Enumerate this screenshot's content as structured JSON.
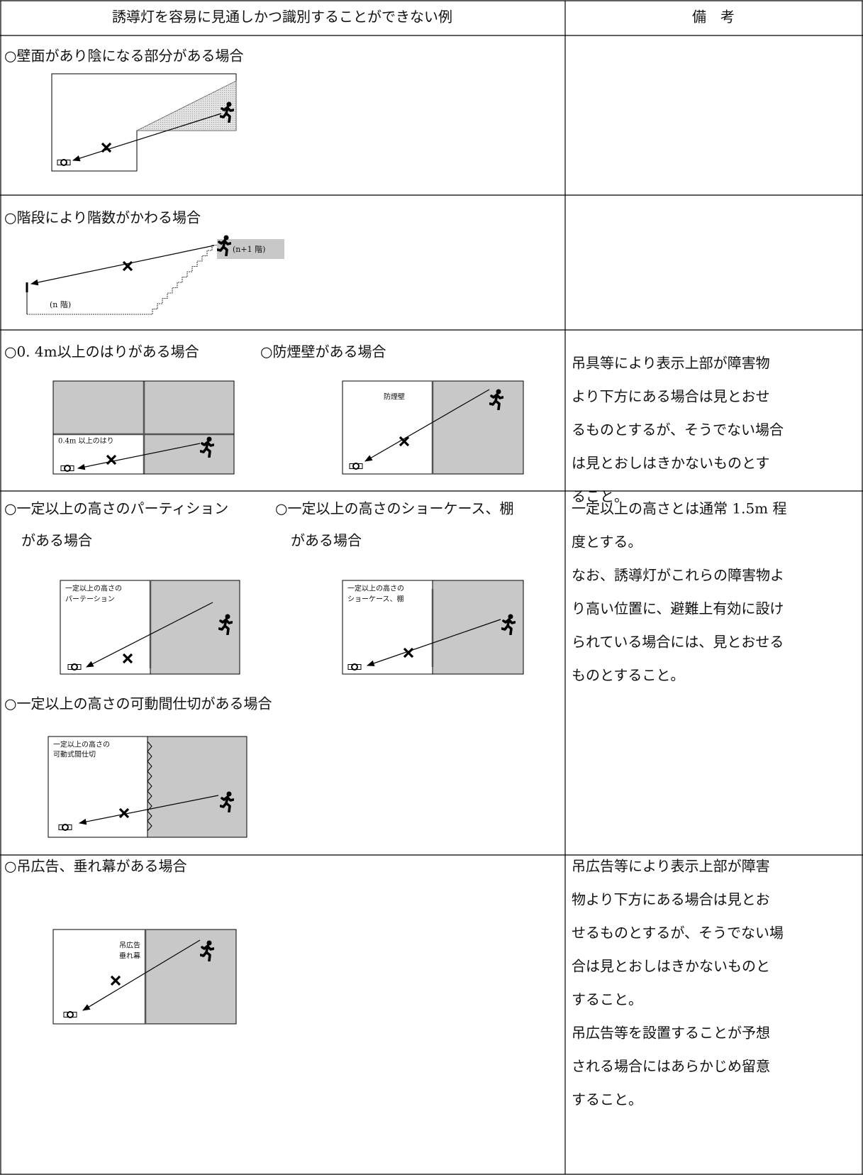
{
  "header": {
    "example": "誘導灯を容易に見通しかつ識別することができない例",
    "remarks": "備　考"
  },
  "rows": [
    {
      "headings": [
        "○壁面があり陰になる部分がある場合"
      ]
    },
    {
      "headings": [
        "○階段により階数がかわる場合"
      ],
      "diagrams": [
        {
          "labels": [
            "(n+1 階)",
            "(n 階)"
          ]
        }
      ]
    },
    {
      "headings": [
        "○0. 4m以上のはりがある場合",
        "○防煙壁がある場合"
      ],
      "diagrams": [
        {
          "labels": [
            "0.4m 以上のはり"
          ]
        },
        {
          "labels": [
            "防煙壁"
          ]
        }
      ],
      "remarks": [
        "吊具等により表示上部が障害物",
        "より下方にある場合は見とおせ",
        "るものとするが、そうでない場合",
        "は見とおしはきかないものとす",
        "ること。"
      ]
    },
    {
      "headings": [
        "○一定以上の高さのパーティション",
        "がある場合",
        "○一定以上の高さのショーケース、棚",
        "がある場合",
        "○一定以上の高さの可動間仕切がある場合"
      ],
      "diagrams": [
        {
          "labels": [
            "一定以上の高さの",
            "パーテーション"
          ]
        },
        {
          "labels": [
            "一定以上の高さの",
            "ショーケース、棚"
          ]
        },
        {
          "labels": [
            "一定以上の高さの",
            "可動式間仕切"
          ]
        }
      ],
      "remarks": [
        "一定以上の高さとは通常 1.5m 程",
        "度とする。",
        "なお、誘導灯がこれらの障害物よ",
        "り高い位置に、避難上有効に設け",
        "られている場合には、見とおせる",
        "ものとすること。"
      ]
    },
    {
      "headings": [
        "○吊広告、垂れ幕がある場合"
      ],
      "diagrams": [
        {
          "labels": [
            "吊広告",
            "垂れ幕"
          ]
        }
      ],
      "remarks": [
        "吊広告等により表示上部が障害",
        "物より下方にある場合は見とお",
        "せるものとするが、そうでない場",
        "合は見とおしはきかないものと",
        "すること。",
        "吊広告等を設置することが予想",
        "される場合にはあらかじめ留意",
        "すること。"
      ]
    }
  ]
}
